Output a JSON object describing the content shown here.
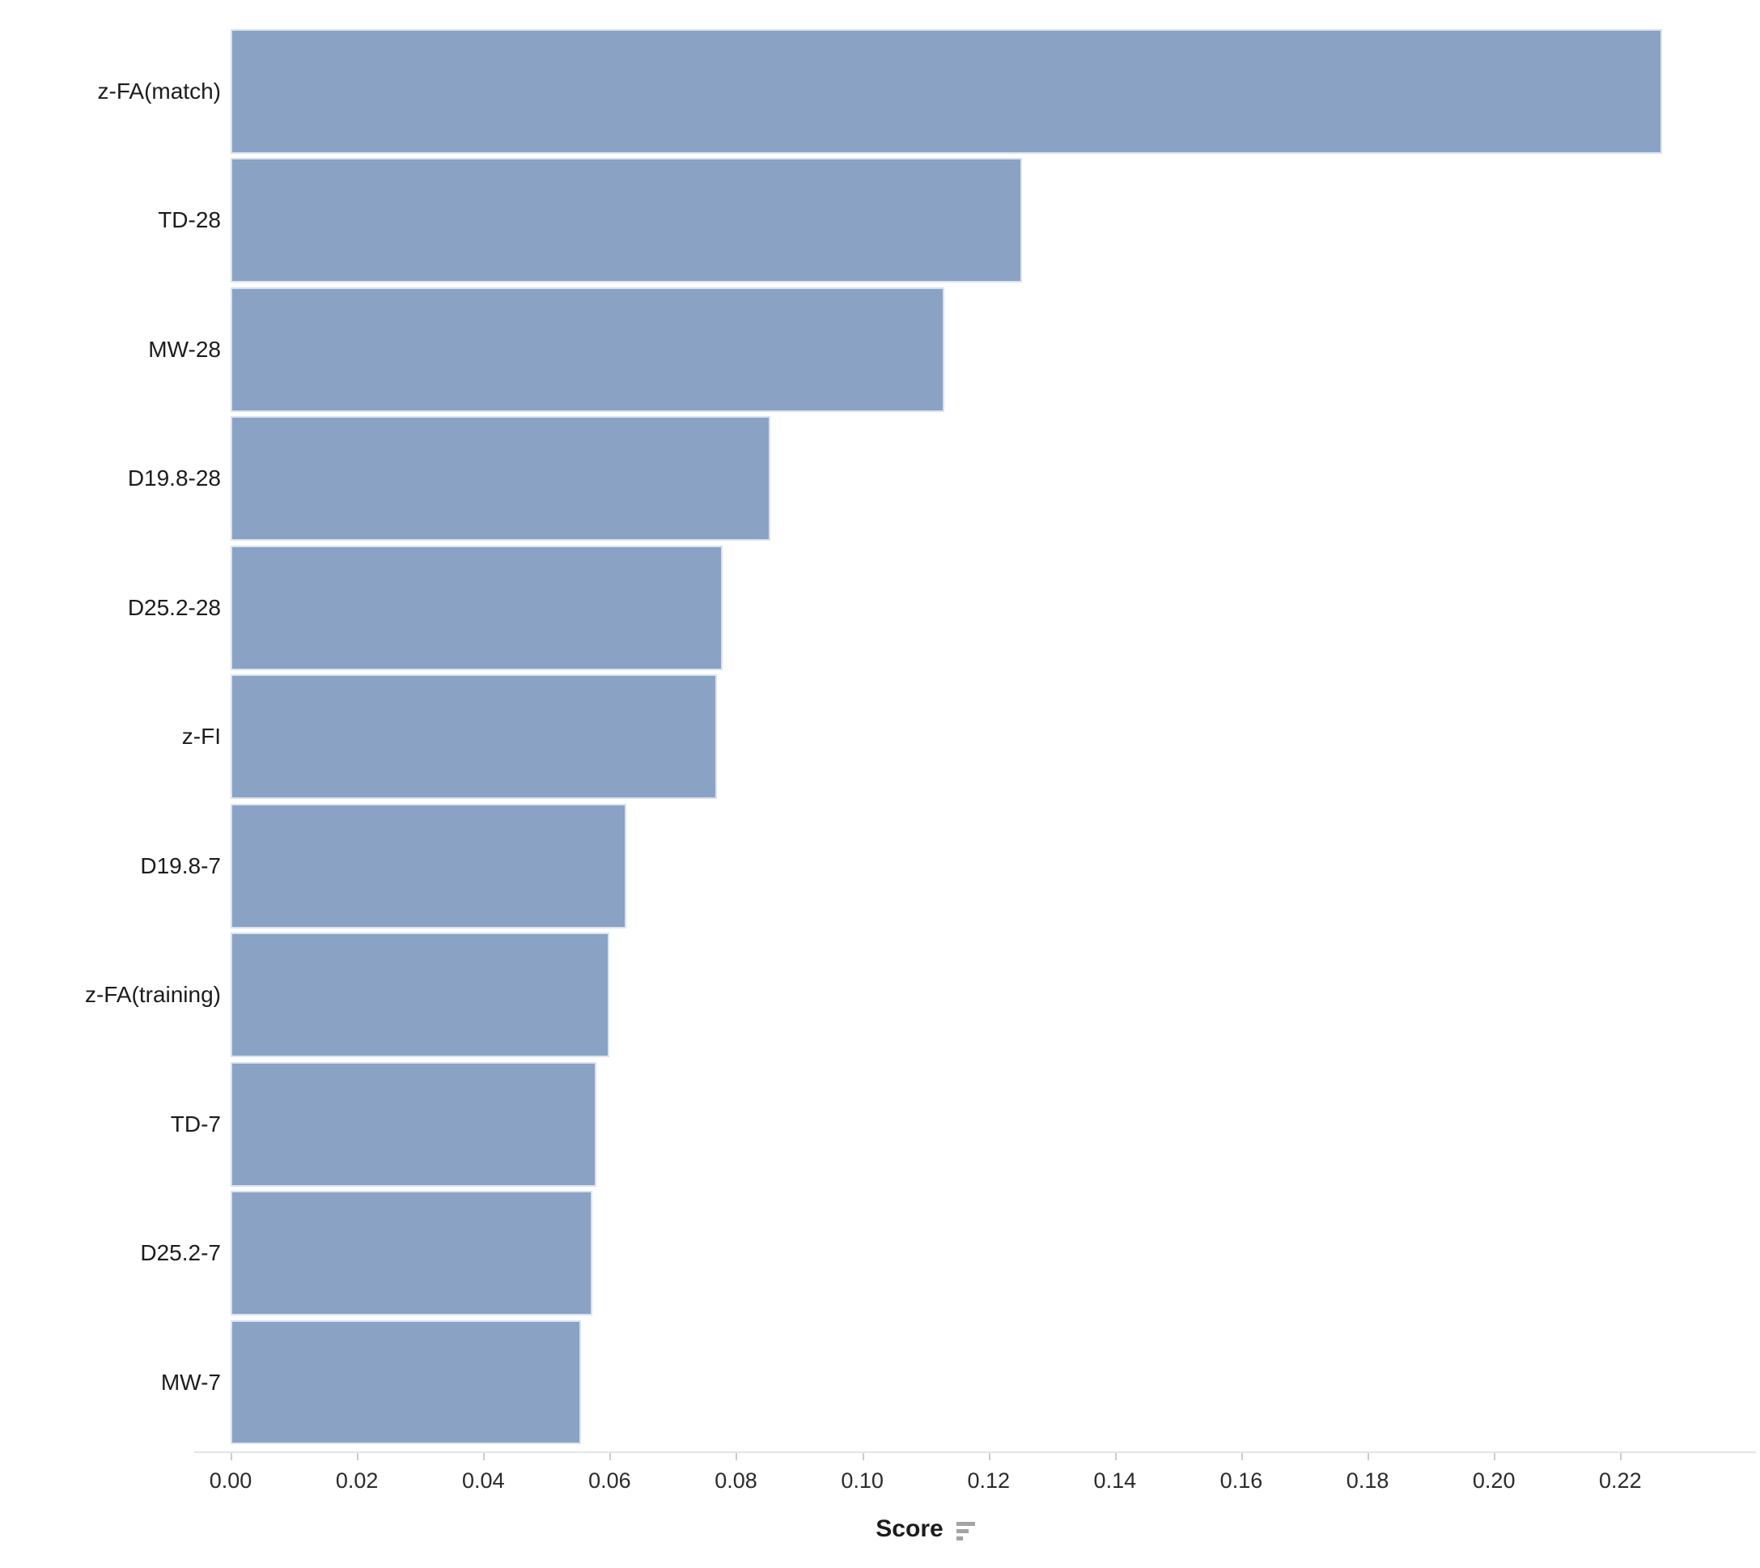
{
  "chart_data": {
    "type": "bar",
    "orientation": "horizontal",
    "title": "",
    "xlabel": "Score",
    "ylabel": "",
    "categories": [
      "z-FA(match)",
      "TD-28",
      "MW-28",
      "D19.8-28",
      "D25.2-28",
      "z-FI",
      "D19.8-7",
      "z-FA(training)",
      "TD-7",
      "D25.2-7",
      "MW-7"
    ],
    "values": [
      0.2266,
      0.1253,
      0.113,
      0.0855,
      0.0779,
      0.077,
      0.0626,
      0.06,
      0.0579,
      0.0573,
      0.0555
    ],
    "x_ticks": [
      "0.00",
      "0.02",
      "0.04",
      "0.06",
      "0.08",
      "0.10",
      "0.12",
      "0.14",
      "0.16",
      "0.18",
      "0.20",
      "0.22"
    ],
    "xlim": [
      0,
      0.2402
    ],
    "grid": "off",
    "legend": "none",
    "bar_color": "#8aa2c4",
    "bar_border_color": "#d9e3f0",
    "axis_line_color": "#e4e4e4",
    "tick_color": "#cccccc",
    "text_color": "#1c1c1e",
    "sort_icon": "sort-descending-icon"
  }
}
